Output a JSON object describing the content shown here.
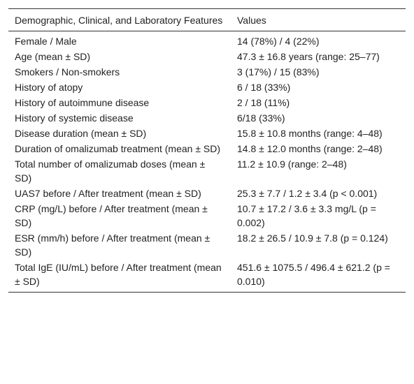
{
  "table": {
    "header": [
      "Demographic, Clinical, and Laboratory Features",
      "Values"
    ],
    "rows": [
      [
        "Female / Male",
        "14 (78%) / 4 (22%)"
      ],
      [
        "Age (mean ± SD)",
        "47.3 ± 16.8 years (range: 25–77)"
      ],
      [
        "Smokers / Non-smokers",
        "3 (17%) / 15 (83%)"
      ],
      [
        "History of atopy",
        "6 / 18 (33%)"
      ],
      [
        "History of autoimmune disease",
        "2 / 18 (11%)"
      ],
      [
        "History of systemic disease",
        "6/18 (33%)"
      ],
      [
        "Disease duration (mean ± SD)",
        "15.8 ± 10.8 months (range: 4–48)"
      ],
      [
        "Duration of omalizumab treatment (mean ± SD)",
        "14.8 ± 12.0 months (range: 2–48)"
      ],
      [
        "Total number of omalizumab doses (mean ± SD)",
        "11.2 ± 10.9 (range: 2–48)"
      ],
      [
        "UAS7 before / After treatment (mean ± SD)",
        "25.3 ± 7.7 / 1.2 ± 3.4 (p < 0.001)"
      ],
      [
        "CRP (mg/L) before / After treatment (mean ± SD)",
        "10.7 ± 17.2 / 3.6 ± 3.3 mg/L (p = 0.002)"
      ],
      [
        "ESR (mm/h) before / After treatment (mean ± SD)",
        "18.2 ± 26.5 / 10.9 ± 7.8 (p = 0.124)"
      ],
      [
        "Total IgE (IU/mL) before / After treatment (mean ± SD)",
        "451.6 ± 1075.5 / 496.4 ± 621.2 (p = 0.010)"
      ]
    ]
  }
}
